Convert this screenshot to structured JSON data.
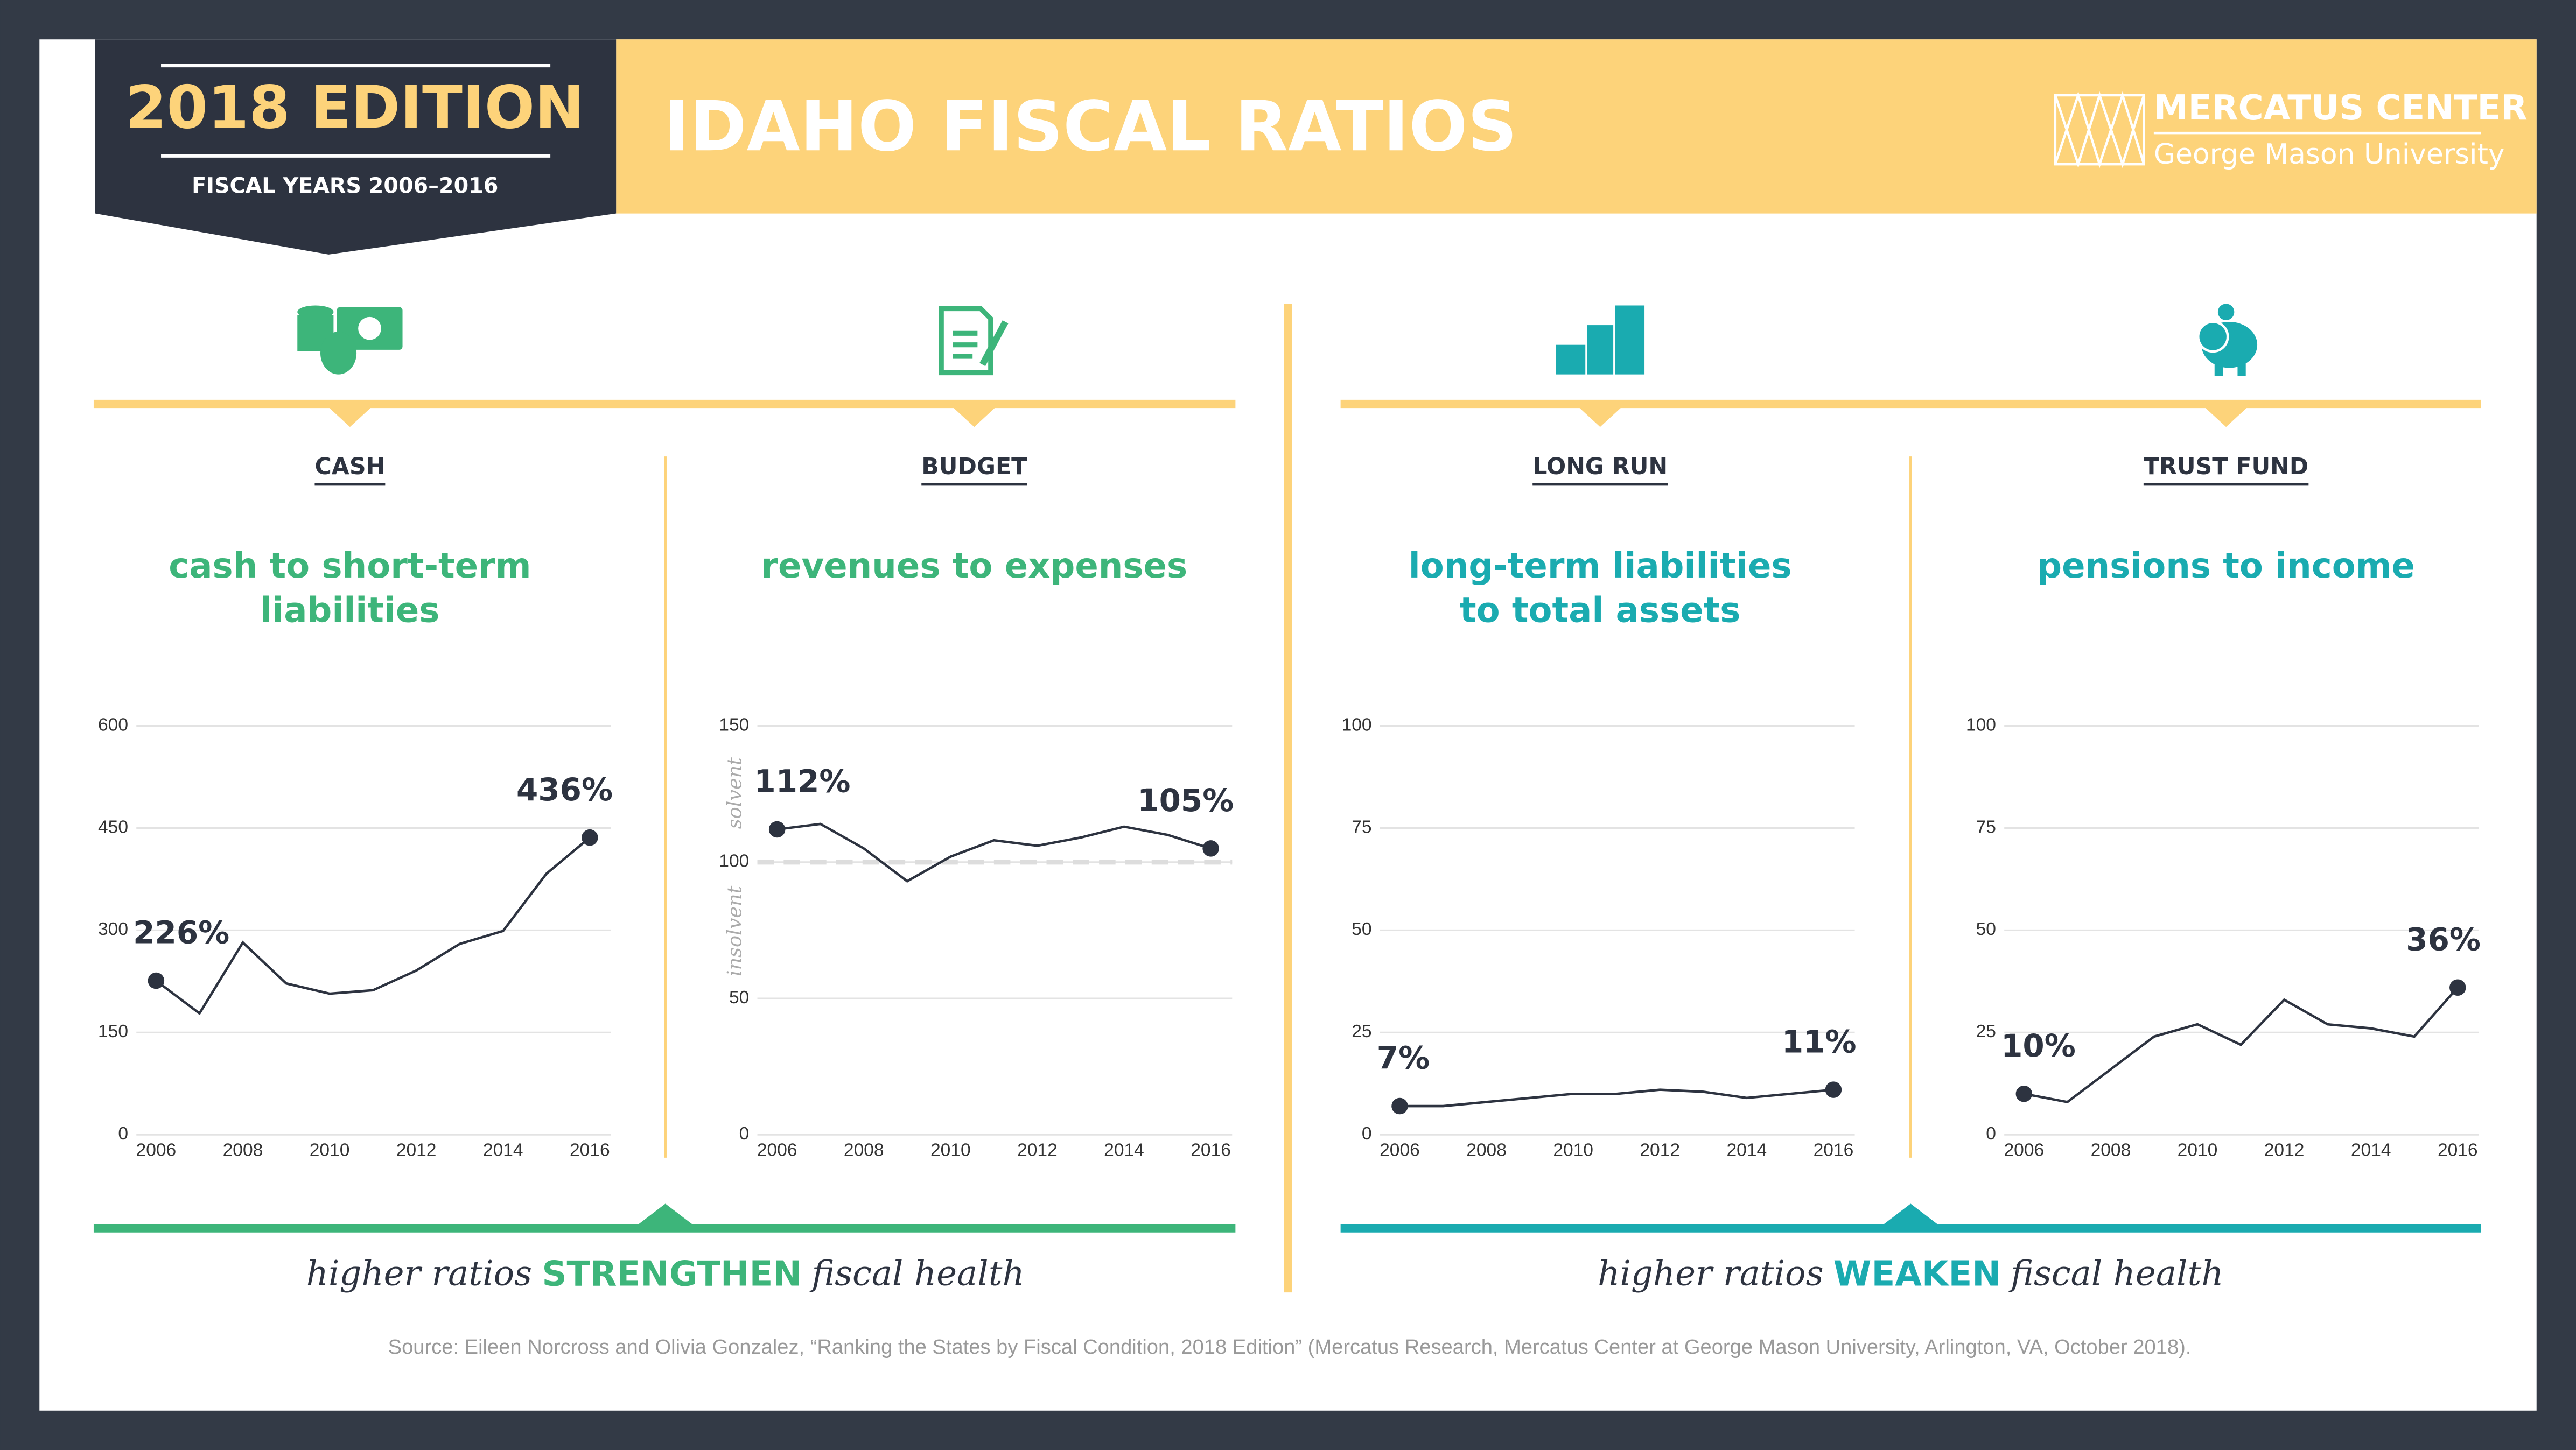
{
  "header": {
    "edition": "2018 EDITION",
    "years": "FISCAL YEARS 2006–2016",
    "title": "IDAHO FISCAL RATIOS",
    "org": "MERCATUS CENTER",
    "university": "George Mason University"
  },
  "chart_data": [
    {
      "type": "line",
      "label": "CASH",
      "title": [
        "cash to short-term",
        "liabilities"
      ],
      "title_color": "#3db57a",
      "color": "#2d3340",
      "x": [
        2006,
        2007,
        2008,
        2009,
        2010,
        2011,
        2012,
        2013,
        2014,
        2015,
        2016
      ],
      "values": [
        226,
        178,
        282,
        222,
        207,
        212,
        241,
        280,
        299,
        383,
        436
      ],
      "value_labels": [
        "226%",
        null,
        null,
        null,
        null,
        null,
        null,
        null,
        null,
        null,
        "436%"
      ],
      "xlim": [
        2006,
        2016
      ],
      "xticks": [
        2006,
        2008,
        2010,
        2012,
        2014,
        2016
      ],
      "ylim": [
        0,
        600
      ],
      "yticks": [
        0,
        150,
        300,
        450,
        600
      ],
      "grid": true
    },
    {
      "type": "line",
      "label": "BUDGET",
      "title": [
        "revenues to expenses"
      ],
      "title_color": "#3db57a",
      "color": "#2d3340",
      "x": [
        2006,
        2007,
        2008,
        2009,
        2010,
        2011,
        2012,
        2013,
        2014,
        2015,
        2016
      ],
      "values": [
        112,
        114,
        105,
        93,
        102,
        108,
        106,
        109,
        113,
        110,
        105
      ],
      "value_labels": [
        "112%",
        null,
        null,
        null,
        null,
        null,
        null,
        null,
        null,
        null,
        "105%"
      ],
      "xlim": [
        2006,
        2016
      ],
      "xticks": [
        2006,
        2008,
        2010,
        2012,
        2014,
        2016
      ],
      "ylim": [
        0,
        150
      ],
      "yticks": [
        0,
        50,
        100,
        150
      ],
      "grid": true,
      "threshold": 100,
      "above_label": "solvent",
      "below_label": "insolvent"
    },
    {
      "type": "line",
      "label": "LONG RUN",
      "title": [
        "long-term liabilities",
        "to total assets"
      ],
      "title_color": "#1aabb0",
      "color": "#2d3340",
      "x": [
        2006,
        2007,
        2008,
        2009,
        2010,
        2011,
        2012,
        2013,
        2014,
        2015,
        2016
      ],
      "values": [
        7,
        7,
        8,
        9,
        10,
        10,
        11,
        10.5,
        9,
        10,
        11
      ],
      "value_labels": [
        "7%",
        null,
        null,
        null,
        null,
        null,
        null,
        null,
        null,
        null,
        "11%"
      ],
      "xlim": [
        2006,
        2016
      ],
      "xticks": [
        2006,
        2008,
        2010,
        2012,
        2014,
        2016
      ],
      "ylim": [
        0,
        100
      ],
      "yticks": [
        0,
        25,
        50,
        75,
        100
      ],
      "grid": true
    },
    {
      "type": "line",
      "label": "TRUST FUND",
      "title": [
        "pensions to income"
      ],
      "title_color": "#1aabb0",
      "color": "#2d3340",
      "x": [
        2006,
        2007,
        2008,
        2009,
        2010,
        2011,
        2012,
        2013,
        2014,
        2015,
        2016
      ],
      "values": [
        10,
        8,
        16,
        24,
        27,
        22,
        33,
        27,
        26,
        24,
        36
      ],
      "value_labels": [
        "10%",
        null,
        null,
        null,
        null,
        null,
        null,
        null,
        null,
        null,
        "36%"
      ],
      "xlim": [
        2006,
        2016
      ],
      "xticks": [
        2006,
        2008,
        2010,
        2012,
        2014,
        2016
      ],
      "ylim": [
        0,
        100
      ],
      "yticks": [
        0,
        25,
        50,
        75,
        100
      ],
      "grid": true
    }
  ],
  "footers": [
    {
      "before": "higher ratios",
      "emphasis": "STRENGTHEN",
      "after": "fiscal health",
      "color": "#3db57a"
    },
    {
      "before": "higher ratios",
      "emphasis": "WEAKEN",
      "after": "fiscal health",
      "color": "#1aabb0"
    }
  ],
  "source": "Source: Eileen Norcross and Olivia Gonzalez, “Ranking the States by Fiscal Condition, 2018 Edition” (Mercatus Research, Mercatus Center at George Mason University, Arlington, VA, October 2018)."
}
